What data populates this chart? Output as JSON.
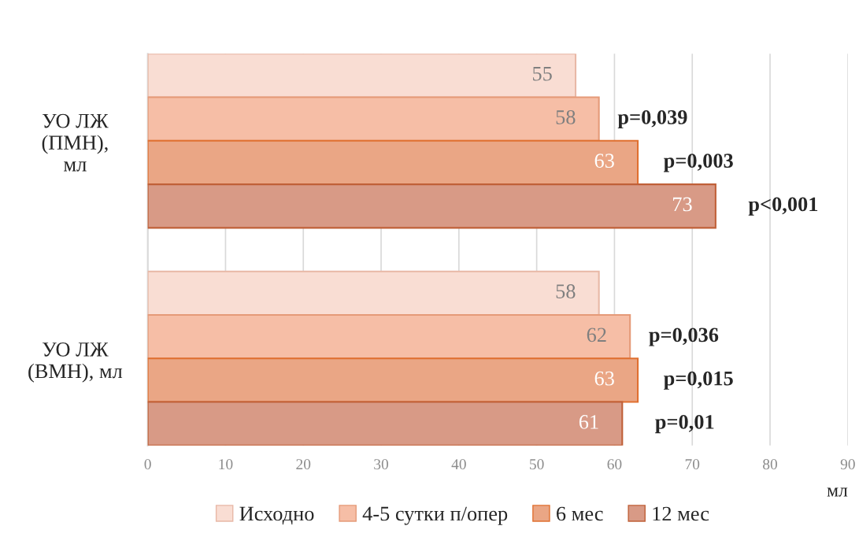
{
  "chart_data": {
    "type": "bar",
    "orientation": "horizontal",
    "categories": [
      "УО ЛЖ\n(ПМН),\nмл",
      "УО ЛЖ\n(ВМН), мл"
    ],
    "series": [
      {
        "name": "Исходно",
        "color": "#f9ddd3",
        "values": [
          55,
          58
        ]
      },
      {
        "name": "4-5 сутки п/опер",
        "color": "#f6bea6",
        "values": [
          58,
          62
        ]
      },
      {
        "name": "6 мес",
        "color": "#eaa685",
        "values": [
          63,
          63
        ]
      },
      {
        "name": "12 мес",
        "color": "#d89a86",
        "values": [
          73,
          61
        ]
      }
    ],
    "data_labels": true,
    "annotations": [
      "p=0,039",
      "p=0,003",
      "p<0,001",
      "p=0,036",
      "p=0,015",
      "p=0,01"
    ],
    "xlabel": "мл",
    "xlim": [
      0,
      90
    ],
    "xticks": [
      0,
      10,
      20,
      30,
      40,
      50,
      60,
      70,
      80,
      90
    ],
    "grid": "x",
    "legend": "bottom"
  }
}
